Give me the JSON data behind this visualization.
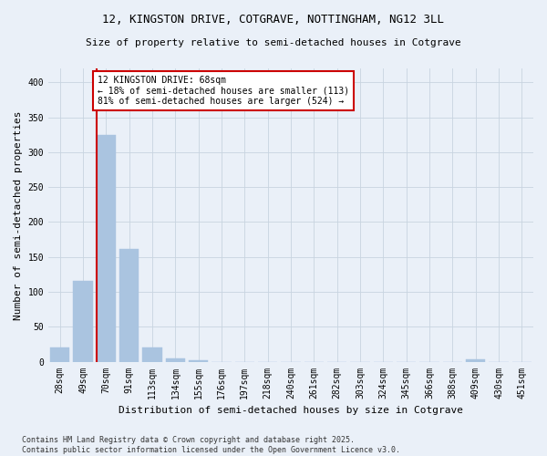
{
  "title_line1": "12, KINGSTON DRIVE, COTGRAVE, NOTTINGHAM, NG12 3LL",
  "title_line2": "Size of property relative to semi-detached houses in Cotgrave",
  "xlabel": "Distribution of semi-detached houses by size in Cotgrave",
  "ylabel": "Number of semi-detached properties",
  "categories": [
    "28sqm",
    "49sqm",
    "70sqm",
    "91sqm",
    "113sqm",
    "134sqm",
    "155sqm",
    "176sqm",
    "197sqm",
    "218sqm",
    "240sqm",
    "261sqm",
    "282sqm",
    "303sqm",
    "324sqm",
    "345sqm",
    "366sqm",
    "388sqm",
    "409sqm",
    "430sqm",
    "451sqm"
  ],
  "values": [
    20,
    116,
    325,
    162,
    20,
    5,
    2,
    0,
    0,
    0,
    0,
    0,
    0,
    0,
    0,
    0,
    0,
    0,
    3,
    0,
    0
  ],
  "bar_color": "#aac4e0",
  "annotation_text": "12 KINGSTON DRIVE: 68sqm\n← 18% of semi-detached houses are smaller (113)\n81% of semi-detached houses are larger (524) →",
  "annotation_box_color": "#ffffff",
  "annotation_box_edge": "#cc0000",
  "vline_color": "#cc0000",
  "background_color": "#eaf0f8",
  "footer_text": "Contains HM Land Registry data © Crown copyright and database right 2025.\nContains public sector information licensed under the Open Government Licence v3.0.",
  "ylim": [
    0,
    420
  ],
  "yticks": [
    0,
    50,
    100,
    150,
    200,
    250,
    300,
    350,
    400
  ],
  "grid_color": "#c8d4e0",
  "title_fontsize": 9,
  "subtitle_fontsize": 8,
  "ylabel_fontsize": 8,
  "xlabel_fontsize": 8,
  "tick_fontsize": 7,
  "footer_fontsize": 6
}
